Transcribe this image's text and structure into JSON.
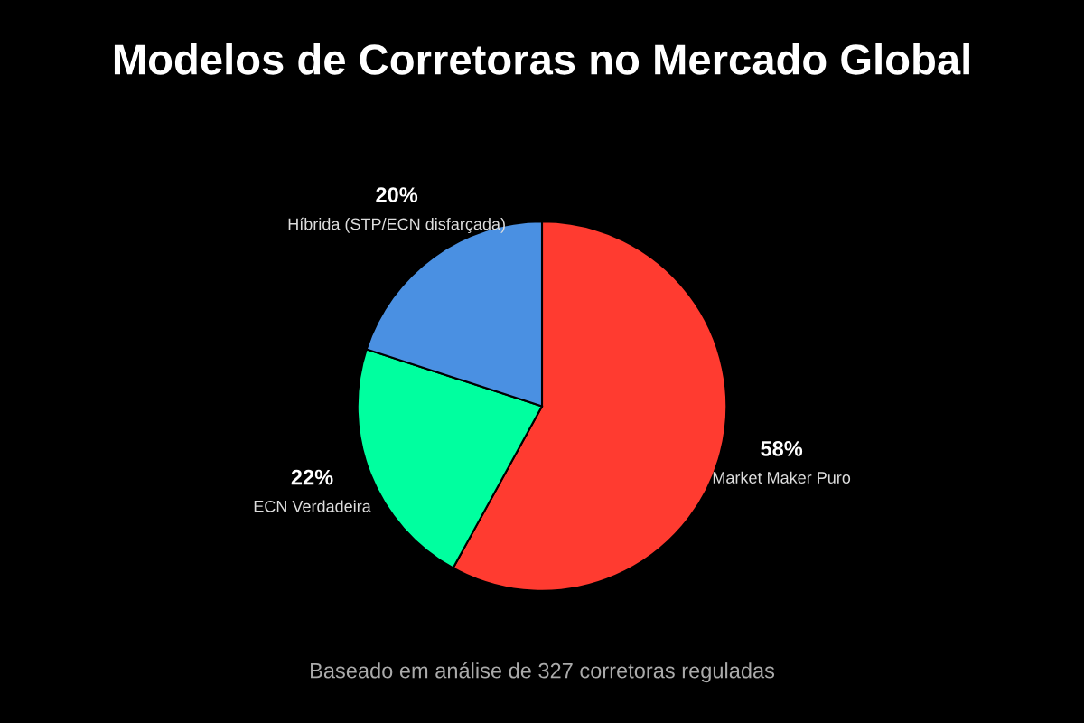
{
  "chart_data": {
    "type": "pie",
    "title": "Modelos de Corretoras no Mercado Global",
    "categories": [
      "Market Maker Puro",
      "ECN Verdadeira",
      "Híbrida (STP/ECN disfarçada)"
    ],
    "values": [
      58,
      22,
      20
    ],
    "value_labels": [
      "58%",
      "22%",
      "20%"
    ],
    "colors": [
      "#ff3b30",
      "#00ff9f",
      "#4a90e2"
    ],
    "annotations": [
      "Baseado em análise de 327 corretoras reguladas"
    ],
    "legend": false
  }
}
